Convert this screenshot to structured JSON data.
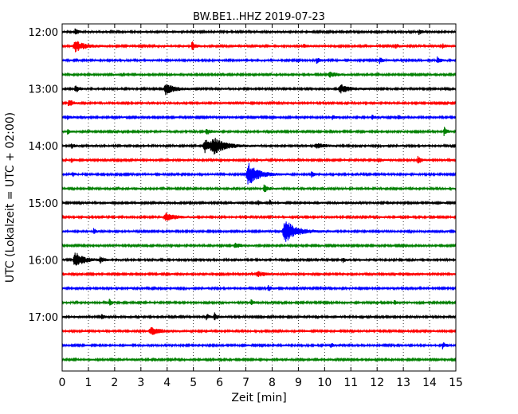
{
  "chart_data": {
    "type": "line",
    "title": "BW.BE1..HHZ 2019-07-23",
    "xlabel": "Zeit  [min]",
    "ylabel": "UTC (Lokalzeit = UTC + 02:00)",
    "xlim": [
      0,
      15
    ],
    "x_ticks": [
      "0",
      "1",
      "2",
      "3",
      "4",
      "5",
      "6",
      "7",
      "8",
      "9",
      "10",
      "11",
      "12",
      "13",
      "14",
      "15"
    ],
    "y_ticks": [
      {
        "row": 0,
        "label": "12:00"
      },
      {
        "row": 4,
        "label": "13:00"
      },
      {
        "row": 8,
        "label": "14:00"
      },
      {
        "row": 12,
        "label": "15:00"
      },
      {
        "row": 16,
        "label": "16:00"
      },
      {
        "row": 20,
        "label": "17:00"
      }
    ],
    "grid": "vertical dotted",
    "color_cycle": [
      "#000000",
      "#ff0000",
      "#0000ff",
      "#008000"
    ],
    "traces": [
      {
        "start": "12:00",
        "noise": 0.12,
        "events": [
          {
            "t": 0.5,
            "amp": 0.35,
            "dur": 0.12
          },
          {
            "t": 13.6,
            "amp": 0.3,
            "dur": 0.1
          }
        ]
      },
      {
        "start": "12:15",
        "noise": 0.12,
        "events": [
          {
            "t": 0.5,
            "amp": 0.7,
            "dur": 0.35
          },
          {
            "t": 4.95,
            "amp": 0.55,
            "dur": 0.12
          },
          {
            "t": 9.2,
            "amp": 0.3,
            "dur": 0.1
          },
          {
            "t": 12.7,
            "amp": 0.3,
            "dur": 0.1
          },
          {
            "t": 14.5,
            "amp": 0.25,
            "dur": 0.1
          }
        ]
      },
      {
        "start": "12:30",
        "noise": 0.12,
        "events": [
          {
            "t": 9.7,
            "amp": 0.4,
            "dur": 0.1
          },
          {
            "t": 12.1,
            "amp": 0.35,
            "dur": 0.1
          },
          {
            "t": 14.3,
            "amp": 0.45,
            "dur": 0.1
          }
        ]
      },
      {
        "start": "12:45",
        "noise": 0.12,
        "events": [
          {
            "t": 10.2,
            "amp": 0.3,
            "dur": 0.25
          }
        ]
      },
      {
        "start": "13:00",
        "noise": 0.12,
        "events": [
          {
            "t": 0.5,
            "amp": 0.5,
            "dur": 0.12
          },
          {
            "t": 3.95,
            "amp": 0.7,
            "dur": 0.3
          },
          {
            "t": 10.6,
            "amp": 0.55,
            "dur": 0.3
          }
        ]
      },
      {
        "start": "13:15",
        "noise": 0.12,
        "events": [
          {
            "t": 0.25,
            "amp": 0.55,
            "dur": 0.12
          }
        ]
      },
      {
        "start": "13:30",
        "noise": 0.12,
        "events": [
          {
            "t": 0.2,
            "amp": 0.35,
            "dur": 0.08
          },
          {
            "t": 10.3,
            "amp": 0.3,
            "dur": 0.08
          },
          {
            "t": 11.8,
            "amp": 0.3,
            "dur": 0.08
          },
          {
            "t": 12.8,
            "amp": 0.3,
            "dur": 0.08
          }
        ]
      },
      {
        "start": "13:45",
        "noise": 0.12,
        "events": [
          {
            "t": 0.2,
            "amp": 0.3,
            "dur": 0.08
          },
          {
            "t": 5.5,
            "amp": 0.35,
            "dur": 0.15
          },
          {
            "t": 14.55,
            "amp": 0.55,
            "dur": 0.1
          }
        ]
      },
      {
        "start": "14:00",
        "noise": 0.12,
        "events": [
          {
            "t": 0.35,
            "amp": 0.3,
            "dur": 0.1
          },
          {
            "t": 5.45,
            "amp": 0.8,
            "dur": 0.35
          },
          {
            "t": 5.8,
            "amp": 0.7,
            "dur": 0.45
          },
          {
            "t": 9.7,
            "amp": 0.3,
            "dur": 0.3
          }
        ]
      },
      {
        "start": "14:15",
        "noise": 0.12,
        "events": [
          {
            "t": 0.35,
            "amp": 0.3,
            "dur": 0.08
          },
          {
            "t": 12.05,
            "amp": 0.3,
            "dur": 0.1
          },
          {
            "t": 13.55,
            "amp": 0.55,
            "dur": 0.1
          }
        ]
      },
      {
        "start": "14:30",
        "noise": 0.12,
        "events": [
          {
            "t": 0.4,
            "amp": 0.3,
            "dur": 0.08
          },
          {
            "t": 7.1,
            "amp": 1.4,
            "dur": 0.35
          },
          {
            "t": 9.5,
            "amp": 0.35,
            "dur": 0.1
          }
        ]
      },
      {
        "start": "14:45",
        "noise": 0.12,
        "events": [
          {
            "t": 7.7,
            "amp": 0.55,
            "dur": 0.12
          }
        ]
      },
      {
        "start": "15:00",
        "noise": 0.12,
        "events": [
          {
            "t": 7.45,
            "amp": 0.3,
            "dur": 0.08
          },
          {
            "t": 7.9,
            "amp": 0.35,
            "dur": 0.08
          }
        ]
      },
      {
        "start": "15:15",
        "noise": 0.12,
        "events": [
          {
            "t": 3.95,
            "amp": 0.45,
            "dur": 0.35
          }
        ]
      },
      {
        "start": "15:30",
        "noise": 0.12,
        "events": [
          {
            "t": 1.2,
            "amp": 0.35,
            "dur": 0.08
          },
          {
            "t": 8.5,
            "amp": 1.4,
            "dur": 0.4
          }
        ]
      },
      {
        "start": "15:45",
        "noise": 0.12,
        "events": [
          {
            "t": 6.6,
            "amp": 0.3,
            "dur": 0.25
          }
        ]
      },
      {
        "start": "16:00",
        "noise": 0.12,
        "events": [
          {
            "t": 0.5,
            "amp": 1.0,
            "dur": 0.3
          },
          {
            "t": 1.45,
            "amp": 0.4,
            "dur": 0.1
          },
          {
            "t": 10.7,
            "amp": 0.3,
            "dur": 0.08
          }
        ]
      },
      {
        "start": "16:15",
        "noise": 0.12,
        "events": [
          {
            "t": 7.45,
            "amp": 0.35,
            "dur": 0.25
          }
        ]
      },
      {
        "start": "16:30",
        "noise": 0.12,
        "events": [
          {
            "t": 7.85,
            "amp": 0.35,
            "dur": 0.1
          }
        ]
      },
      {
        "start": "16:45",
        "noise": 0.12,
        "events": [
          {
            "t": 1.8,
            "amp": 0.45,
            "dur": 0.08
          },
          {
            "t": 7.2,
            "amp": 0.35,
            "dur": 0.1
          },
          {
            "t": 12.65,
            "amp": 0.3,
            "dur": 0.08
          }
        ]
      },
      {
        "start": "17:00",
        "noise": 0.12,
        "events": [
          {
            "t": 1.5,
            "amp": 0.4,
            "dur": 0.08
          },
          {
            "t": 5.5,
            "amp": 0.35,
            "dur": 0.1
          },
          {
            "t": 5.8,
            "amp": 0.5,
            "dur": 0.1
          }
        ]
      },
      {
        "start": "17:15",
        "noise": 0.12,
        "events": [
          {
            "t": 3.4,
            "amp": 0.45,
            "dur": 0.35
          }
        ]
      },
      {
        "start": "17:30",
        "noise": 0.12,
        "events": [
          {
            "t": 10.25,
            "amp": 0.3,
            "dur": 0.08
          },
          {
            "t": 14.5,
            "amp": 0.4,
            "dur": 0.1
          }
        ]
      },
      {
        "start": "17:45",
        "noise": 0.12,
        "events": []
      }
    ]
  }
}
